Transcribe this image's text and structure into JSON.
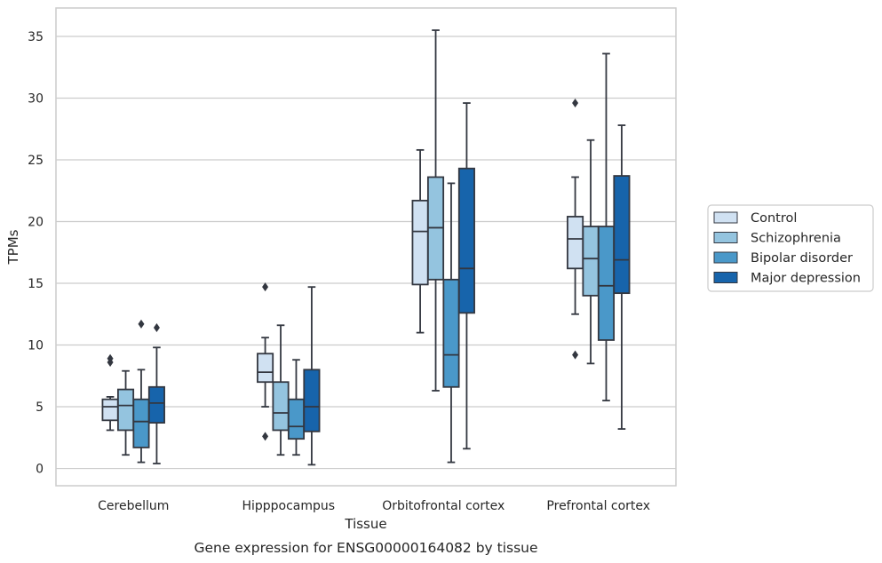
{
  "chart_data": {
    "type": "box",
    "title": "",
    "caption": "Gene expression for ENSG00000164082 by tissue",
    "xlabel": "Tissue",
    "ylabel": "TPMs",
    "ylim": [
      -1.4,
      37.3
    ],
    "yticks": [
      0,
      5,
      10,
      15,
      20,
      25,
      30,
      35
    ],
    "grid": "horizontal",
    "legend_position": "right",
    "categories": [
      "Cerebellum",
      "Hipppocampus",
      "Orbitofrontal cortex",
      "Prefrontal cortex"
    ],
    "series": [
      {
        "name": "Control",
        "color": "#d0e1f2",
        "boxes": [
          {
            "whisker_low": 3.1,
            "q1": 3.9,
            "median": 5.0,
            "q3": 5.6,
            "whisker_high": 5.8,
            "outliers": [
              8.6,
              8.9
            ]
          },
          {
            "whisker_low": 5.0,
            "q1": 7.0,
            "median": 7.8,
            "q3": 9.3,
            "whisker_high": 10.6,
            "outliers": [
              2.6,
              14.7
            ]
          },
          {
            "whisker_low": 11.0,
            "q1": 14.9,
            "median": 19.2,
            "q3": 21.7,
            "whisker_high": 25.8,
            "outliers": []
          },
          {
            "whisker_low": 12.5,
            "q1": 16.2,
            "median": 18.6,
            "q3": 20.4,
            "whisker_high": 23.6,
            "outliers": [
              9.2,
              29.6
            ]
          }
        ]
      },
      {
        "name": "Schizophrenia",
        "color": "#94c4df",
        "boxes": [
          {
            "whisker_low": 1.1,
            "q1": 3.1,
            "median": 5.1,
            "q3": 6.4,
            "whisker_high": 7.9,
            "outliers": []
          },
          {
            "whisker_low": 1.1,
            "q1": 3.1,
            "median": 4.5,
            "q3": 7.0,
            "whisker_high": 11.6,
            "outliers": []
          },
          {
            "whisker_low": 6.3,
            "q1": 15.3,
            "median": 19.5,
            "q3": 23.6,
            "whisker_high": 35.5,
            "outliers": []
          },
          {
            "whisker_low": 8.5,
            "q1": 14.0,
            "median": 17.0,
            "q3": 19.6,
            "whisker_high": 26.6,
            "outliers": []
          }
        ]
      },
      {
        "name": "Bipolar disorder",
        "color": "#4a98c9",
        "boxes": [
          {
            "whisker_low": 0.5,
            "q1": 1.7,
            "median": 3.8,
            "q3": 5.6,
            "whisker_high": 8.0,
            "outliers": [
              11.7
            ]
          },
          {
            "whisker_low": 1.1,
            "q1": 2.4,
            "median": 3.4,
            "q3": 5.6,
            "whisker_high": 8.8,
            "outliers": []
          },
          {
            "whisker_low": 0.5,
            "q1": 6.6,
            "median": 9.2,
            "q3": 15.3,
            "whisker_high": 23.1,
            "outliers": []
          },
          {
            "whisker_low": 5.5,
            "q1": 10.4,
            "median": 14.8,
            "q3": 19.6,
            "whisker_high": 33.6,
            "outliers": []
          }
        ]
      },
      {
        "name": "Major depression",
        "color": "#1764ab",
        "boxes": [
          {
            "whisker_low": 0.4,
            "q1": 3.7,
            "median": 5.3,
            "q3": 6.6,
            "whisker_high": 9.8,
            "outliers": [
              11.4
            ]
          },
          {
            "whisker_low": 0.3,
            "q1": 3.0,
            "median": 5.0,
            "q3": 8.0,
            "whisker_high": 14.7,
            "outliers": []
          },
          {
            "whisker_low": 1.6,
            "q1": 12.6,
            "median": 16.2,
            "q3": 24.3,
            "whisker_high": 29.6,
            "outliers": []
          },
          {
            "whisker_low": 3.2,
            "q1": 14.2,
            "median": 16.9,
            "q3": 23.7,
            "whisker_high": 27.8,
            "outliers": []
          }
        ]
      }
    ],
    "colors": {
      "edge": "#333740",
      "grid": "#cccccc",
      "frame": "#cccccc"
    }
  }
}
